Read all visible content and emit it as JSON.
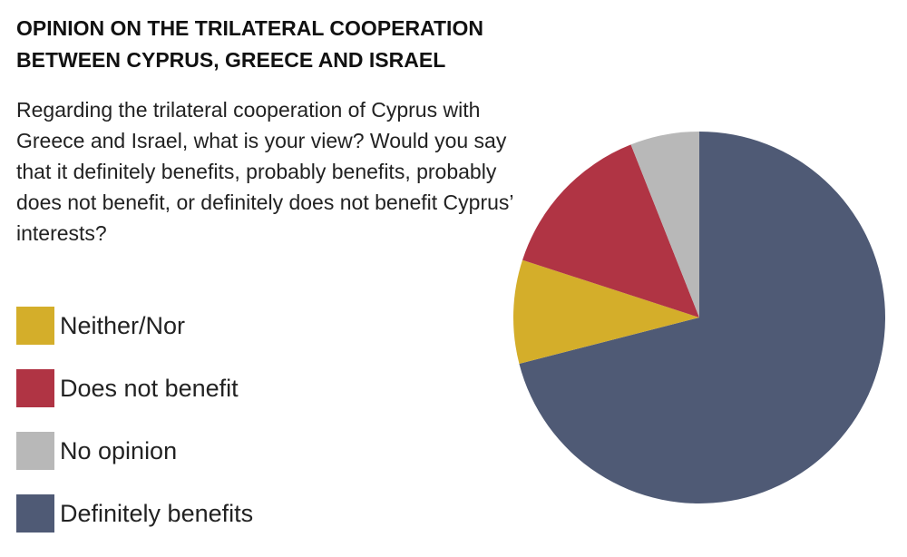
{
  "chart_data": {
    "type": "pie",
    "title": "OPINION ON THE TRILATERAL COOPERATION BETWEEN CYPRUS, GREECE AND ISRAEL",
    "subtitle": "Regarding the trilateral cooperation of Cyprus with Greece and Israel, what is your view? Would you say that it definitely benefits, probably benefits, probably does not benefit, or definitely does not benefit Cyprus’ interests?",
    "categories": [
      "Neither/Nor",
      "Does not benefit",
      "No opinion",
      "Definitely benefits"
    ],
    "values": [
      9,
      14,
      6,
      71
    ],
    "colors": [
      "#d4ae2a",
      "#b03444",
      "#b8b8b8",
      "#4f5a75"
    ]
  }
}
